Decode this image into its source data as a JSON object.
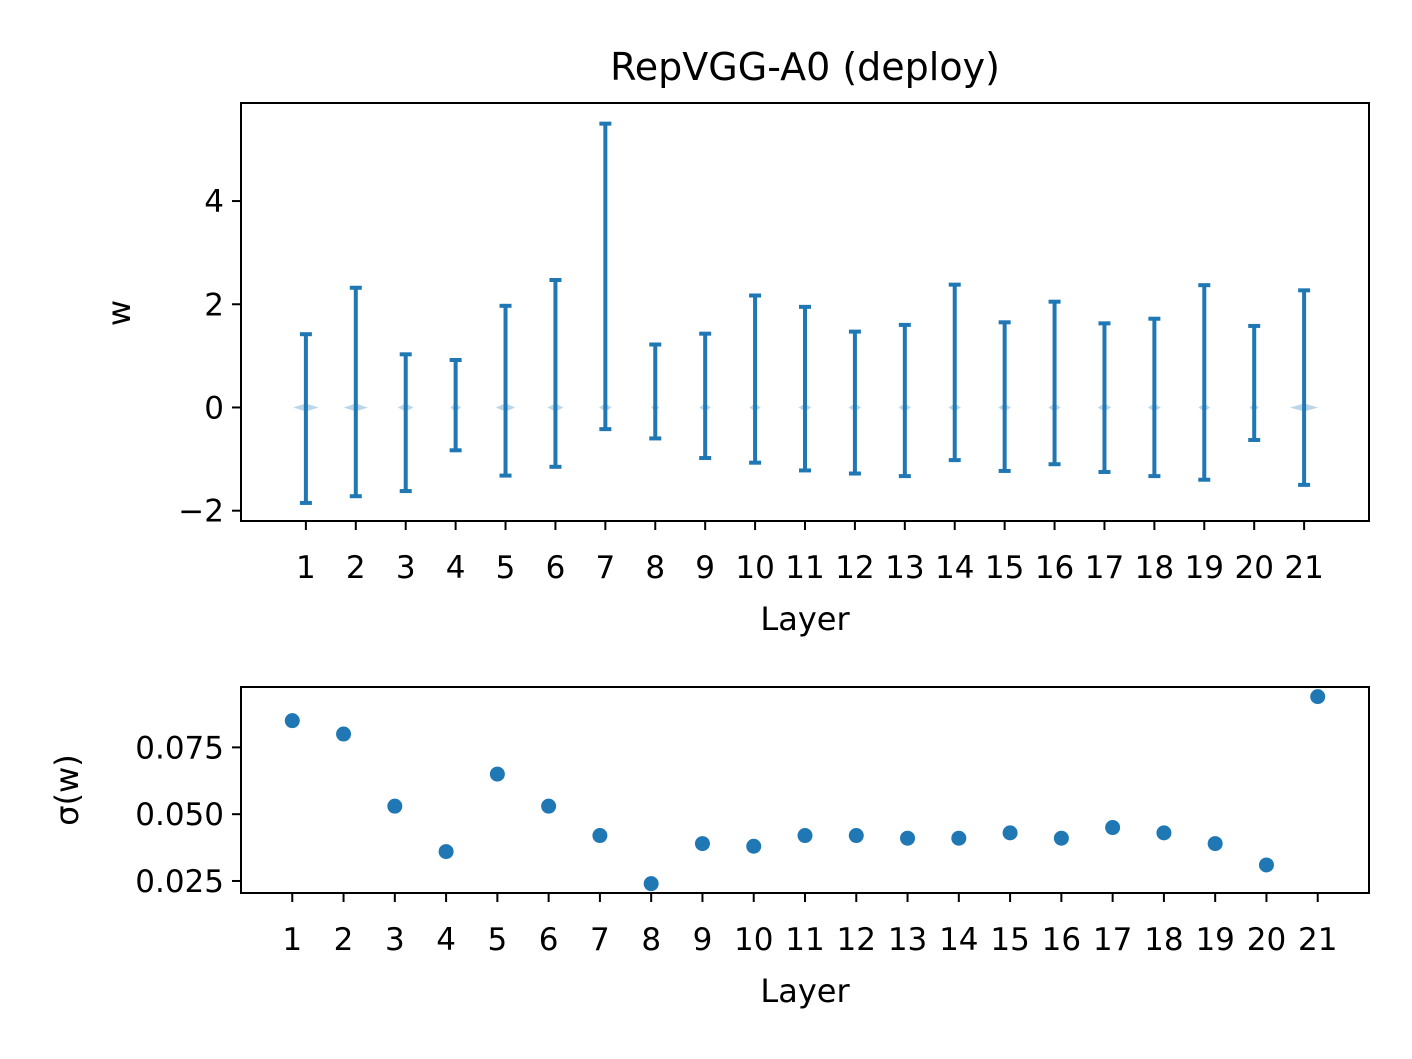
{
  "chart_data": [
    {
      "type": "errorbar",
      "title": "RepVGG-A0 (deploy)",
      "xlabel": "Layer",
      "ylabel": "w",
      "categories": [
        "1",
        "2",
        "3",
        "4",
        "5",
        "6",
        "7",
        "8",
        "9",
        "10",
        "11",
        "12",
        "13",
        "14",
        "15",
        "16",
        "17",
        "18",
        "19",
        "20",
        "21"
      ],
      "x": [
        1,
        2,
        3,
        4,
        5,
        6,
        7,
        8,
        9,
        10,
        11,
        12,
        13,
        14,
        15,
        16,
        17,
        18,
        19,
        20,
        21
      ],
      "min": [
        -1.85,
        -1.72,
        -1.62,
        -0.83,
        -1.32,
        -1.15,
        -0.42,
        -0.6,
        -0.98,
        -1.07,
        -1.22,
        -1.28,
        -1.33,
        -1.02,
        -1.23,
        -1.1,
        -1.25,
        -1.33,
        -1.4,
        -0.63,
        -1.5
      ],
      "max": [
        1.42,
        2.32,
        1.03,
        0.92,
        1.97,
        2.47,
        5.5,
        1.22,
        1.43,
        2.17,
        1.95,
        1.47,
        1.6,
        2.38,
        1.65,
        2.05,
        1.63,
        1.72,
        2.37,
        1.58,
        2.27
      ],
      "spread": [
        0.085,
        0.08,
        0.053,
        0.036,
        0.065,
        0.053,
        0.042,
        0.024,
        0.039,
        0.038,
        0.042,
        0.042,
        0.041,
        0.041,
        0.043,
        0.041,
        0.045,
        0.043,
        0.039,
        0.031,
        0.094
      ],
      "yticks": [
        -2,
        0,
        2,
        4
      ],
      "ylim": [
        -2.2,
        5.9
      ],
      "xlim": [
        -0.3,
        22.3
      ],
      "color": "#1f77b4"
    },
    {
      "type": "scatter",
      "xlabel": "Layer",
      "ylabel": "σ(w)",
      "categories": [
        "1",
        "2",
        "3",
        "4",
        "5",
        "6",
        "7",
        "8",
        "9",
        "10",
        "11",
        "12",
        "13",
        "14",
        "15",
        "16",
        "17",
        "18",
        "19",
        "20",
        "21"
      ],
      "x": [
        1,
        2,
        3,
        4,
        5,
        6,
        7,
        8,
        9,
        10,
        11,
        12,
        13,
        14,
        15,
        16,
        17,
        18,
        19,
        20,
        21
      ],
      "values": [
        0.085,
        0.08,
        0.053,
        0.036,
        0.065,
        0.053,
        0.042,
        0.024,
        0.039,
        0.038,
        0.042,
        0.042,
        0.041,
        0.041,
        0.043,
        0.041,
        0.045,
        0.043,
        0.039,
        0.031,
        0.094
      ],
      "ytick_labels": [
        "0.025",
        "0.050",
        "0.075"
      ],
      "yticks": [
        0.025,
        0.05,
        0.075
      ],
      "ylim": [
        0.0205,
        0.0976
      ],
      "xlim": [
        0.0,
        22.0
      ],
      "color": "#1f77b4"
    }
  ]
}
